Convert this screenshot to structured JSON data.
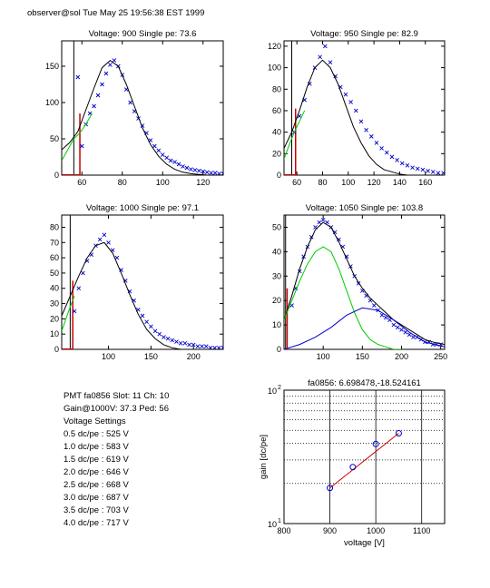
{
  "header": "observer@sol  Tue May 25 19:56:38 EST 1999",
  "info": {
    "pmt_line": "PMT fa0856 Slot: 11 Ch: 10",
    "gain_line": "Gain@1000V: 37.3 Ped: 56",
    "settings_title": "Voltage Settings",
    "settings": [
      "0.5 dc/pe : 525 V",
      "1.0 dc/pe : 583 V",
      "1.5 dc/pe : 619 V",
      "2.0 dc/pe : 646 V",
      "2.5 dc/pe : 668 V",
      "3.0 dc/pe : 687 V",
      "3.5 dc/pe : 703 V",
      "4.0 dc/pe : 717 V"
    ]
  },
  "colors": {
    "data": "#0000cc",
    "fit": "#000000",
    "component": "#00cc00",
    "pedestal": "#cc0000",
    "grid": "#000000"
  },
  "chart_data": [
    {
      "type": "scatter",
      "title": "Voltage: 900 Single pe: 73.6",
      "xlim": [
        50,
        130
      ],
      "ylim": [
        0,
        185
      ],
      "xticks": [
        60,
        80,
        100,
        120
      ],
      "yticks": [
        0,
        50,
        100,
        150
      ],
      "pedestal": {
        "x": 56,
        "height": 185,
        "x2": 59,
        "height2": 85
      },
      "series": [
        {
          "role": "data",
          "x": [
            58,
            60,
            62,
            64,
            66,
            68,
            70,
            72,
            74,
            76,
            78,
            80,
            82,
            84,
            86,
            88,
            90,
            92,
            94,
            96,
            98,
            100,
            102,
            104,
            106,
            108,
            110,
            112,
            114,
            116,
            118,
            120,
            122,
            124,
            126,
            128,
            130
          ],
          "y": [
            135,
            40,
            70,
            85,
            95,
            110,
            125,
            140,
            152,
            158,
            150,
            138,
            118,
            100,
            88,
            78,
            68,
            58,
            48,
            40,
            34,
            28,
            24,
            20,
            18,
            15,
            12,
            10,
            8,
            7,
            6,
            5,
            4,
            3,
            3,
            2,
            2
          ]
        },
        {
          "role": "fit",
          "x": [
            50,
            54,
            58,
            62,
            66,
            70,
            74,
            78,
            82,
            86,
            90,
            94,
            98,
            102,
            106,
            110,
            114,
            118,
            122,
            126,
            130
          ],
          "y": [
            35,
            45,
            60,
            90,
            120,
            148,
            158,
            150,
            125,
            95,
            65,
            42,
            26,
            15,
            8,
            4,
            2,
            1,
            0,
            0,
            0
          ]
        },
        {
          "role": "component",
          "x": [
            50,
            53,
            56,
            59,
            62,
            65
          ],
          "y": [
            20,
            35,
            50,
            58,
            70,
            85
          ]
        }
      ]
    },
    {
      "type": "scatter",
      "title": "Voltage: 950 Single pe: 82.9",
      "xlim": [
        50,
        175
      ],
      "ylim": [
        0,
        125
      ],
      "xticks": [
        60,
        80,
        100,
        120,
        140,
        160
      ],
      "yticks": [
        0,
        20,
        40,
        60,
        80,
        100,
        120
      ],
      "pedestal": {
        "x": 56,
        "height": 125,
        "x2": 59,
        "height2": 62
      },
      "series": [
        {
          "role": "data",
          "x": [
            58,
            62,
            66,
            70,
            74,
            78,
            82,
            86,
            90,
            94,
            98,
            102,
            106,
            110,
            114,
            118,
            122,
            126,
            130,
            134,
            138,
            142,
            146,
            150,
            154,
            158,
            162,
            166,
            170,
            174
          ],
          "y": [
            40,
            55,
            70,
            85,
            100,
            110,
            120,
            105,
            92,
            82,
            75,
            68,
            60,
            50,
            42,
            36,
            30,
            25,
            21,
            17,
            14,
            11,
            9,
            7,
            6,
            5,
            4,
            3,
            2,
            2
          ]
        },
        {
          "role": "fit",
          "x": [
            50,
            56,
            62,
            68,
            74,
            80,
            86,
            92,
            98,
            104,
            110,
            116,
            122,
            128,
            134,
            140,
            146,
            152,
            160,
            168,
            175
          ],
          "y": [
            25,
            40,
            60,
            82,
            100,
            107,
            100,
            85,
            65,
            45,
            30,
            18,
            10,
            5,
            3,
            1,
            0,
            0,
            0,
            0,
            0
          ]
        },
        {
          "role": "component",
          "x": [
            50,
            54,
            58,
            62,
            66
          ],
          "y": [
            15,
            28,
            40,
            50,
            60
          ]
        }
      ]
    },
    {
      "type": "scatter",
      "title": "Voltage: 1000 Single pe: 97.1",
      "xlim": [
        45,
        235
      ],
      "ylim": [
        0,
        88
      ],
      "xticks": [
        100,
        150,
        200
      ],
      "yticks": [
        0,
        10,
        20,
        30,
        40,
        50,
        60,
        70,
        80
      ],
      "pedestal": {
        "x": 55,
        "height": 88,
        "x2": 58,
        "height2": 45
      },
      "series": [
        {
          "role": "data",
          "x": [
            60,
            65,
            70,
            75,
            80,
            85,
            90,
            95,
            100,
            105,
            110,
            115,
            120,
            125,
            130,
            135,
            140,
            145,
            150,
            155,
            160,
            165,
            170,
            175,
            180,
            185,
            190,
            195,
            200,
            205,
            210,
            215,
            220,
            225,
            230,
            235
          ],
          "y": [
            25,
            40,
            50,
            58,
            62,
            68,
            72,
            75,
            70,
            65,
            60,
            52,
            45,
            38,
            32,
            26,
            22,
            18,
            15,
            12,
            10,
            8,
            7,
            6,
            5,
            4,
            4,
            3,
            3,
            2,
            2,
            2,
            1,
            1,
            1,
            1
          ]
        },
        {
          "role": "fit",
          "x": [
            45,
            55,
            65,
            75,
            85,
            95,
            105,
            115,
            125,
            135,
            145,
            155,
            165,
            175,
            185,
            195,
            210,
            225,
            235
          ],
          "y": [
            22,
            35,
            48,
            60,
            68,
            70,
            63,
            50,
            36,
            23,
            13,
            7,
            3,
            1,
            0,
            0,
            0,
            0,
            0
          ]
        },
        {
          "role": "component",
          "x": [
            45,
            50,
            55,
            60
          ],
          "y": [
            12,
            20,
            28,
            35
          ]
        }
      ]
    },
    {
      "type": "scatter",
      "title": "Voltage: 1050 Single pe: 103.8",
      "xlim": [
        50,
        255
      ],
      "ylim": [
        0,
        55
      ],
      "xticks": [
        100,
        150,
        200,
        250
      ],
      "yticks": [
        0,
        10,
        20,
        30,
        40,
        50
      ],
      "pedestal": {
        "x": 52,
        "height": 55,
        "x2": 54,
        "height2": 25
      },
      "series": [
        {
          "role": "data",
          "x": [
            60,
            65,
            70,
            75,
            80,
            85,
            90,
            95,
            100,
            105,
            110,
            115,
            120,
            125,
            130,
            135,
            140,
            145,
            150,
            155,
            160,
            165,
            170,
            175,
            180,
            185,
            190,
            195,
            200,
            205,
            210,
            215,
            220,
            225,
            230,
            235,
            240,
            245,
            250
          ],
          "y": [
            18,
            25,
            32,
            38,
            42,
            46,
            50,
            52,
            53,
            52,
            50,
            48,
            45,
            42,
            38,
            34,
            30,
            27,
            24,
            22,
            20,
            18,
            16,
            14,
            13,
            12,
            10,
            9,
            8,
            7,
            6,
            5,
            5,
            4,
            3,
            3,
            2,
            2,
            2
          ]
        },
        {
          "role": "fit",
          "x": [
            50,
            60,
            70,
            80,
            90,
            100,
            110,
            120,
            130,
            140,
            150,
            160,
            170,
            180,
            190,
            200,
            210,
            220,
            230,
            240,
            255
          ],
          "y": [
            12,
            22,
            33,
            42,
            49,
            52,
            50,
            44,
            37,
            30,
            25,
            21,
            18,
            15,
            12,
            10,
            8,
            6,
            4,
            3,
            2
          ]
        },
        {
          "role": "component",
          "x": [
            50,
            60,
            70,
            80,
            90,
            100,
            110,
            120,
            130,
            140,
            150,
            160,
            170,
            180,
            190,
            200
          ],
          "y": [
            12,
            20,
            28,
            35,
            40,
            42,
            40,
            33,
            24,
            15,
            8,
            4,
            2,
            1,
            0,
            0
          ]
        },
        {
          "role": "component2",
          "x": [
            50,
            70,
            90,
            110,
            130,
            150,
            170,
            190,
            210,
            230,
            255
          ],
          "y": [
            0,
            2,
            5,
            9,
            14,
            17,
            16,
            12,
            7,
            3,
            1
          ]
        }
      ]
    },
    {
      "type": "line",
      "title": "fa0856: 6.698478,-18.524161",
      "xlabel": "voltage [V]",
      "ylabel": "gain [dc/pe]",
      "xlim": [
        800,
        1150
      ],
      "ylim": [
        10,
        100
      ],
      "yscale": "log",
      "xticks": [
        800,
        900,
        1000,
        1100
      ],
      "ytick_labels": [
        "10",
        "10"
      ],
      "ytick_sup": [
        "1",
        "2"
      ],
      "grid": true,
      "series": [
        {
          "role": "measured",
          "x": [
            900,
            950,
            1000,
            1050
          ],
          "y": [
            18.5,
            26.5,
            39.5,
            47.5
          ]
        },
        {
          "role": "fit",
          "x": [
            900,
            1050
          ],
          "y": [
            18.5,
            47.5
          ]
        }
      ]
    }
  ]
}
